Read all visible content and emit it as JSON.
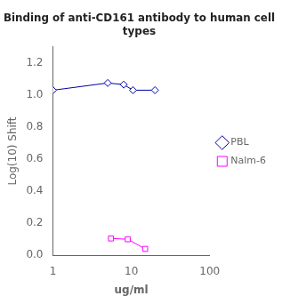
{
  "chart_data": {
    "type": "line",
    "title": "Binding of anti-CD161 antibody to human cell\ntypes",
    "x_label": "ug/ml",
    "y_label": "Log(10) Shift",
    "series": [
      {
        "name": "PBL",
        "color": "#0000aa",
        "marker": "diamond",
        "x": [
          1.0,
          5.0,
          8.0,
          10.5,
          20.0
        ],
        "values": [
          1.03,
          1.075,
          1.065,
          1.03,
          1.03
        ]
      },
      {
        "name": "Nalm-6",
        "color": "#ff00ff",
        "marker": "square",
        "x": [
          5.5,
          9.0,
          15.0
        ],
        "values": [
          0.105,
          0.1,
          0.04
        ]
      }
    ],
    "log": "x",
    "xlim": [
      1,
      100
    ],
    "xticks": [
      1,
      10,
      100
    ],
    "ylim": [
      0,
      1.3
    ],
    "yticks": [
      {
        "value": 0,
        "label": "0.0"
      },
      0.2,
      0.4,
      0.6,
      0.8,
      {
        "value": 1.0,
        "label": "1.0"
      },
      1.2
    ],
    "grid": false,
    "legend": "right"
  }
}
